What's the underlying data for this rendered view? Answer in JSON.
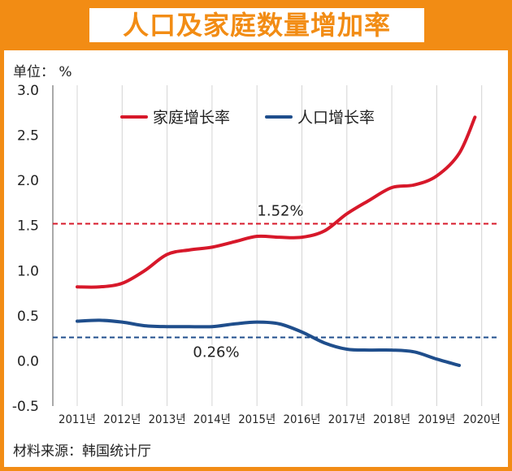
{
  "title": "人口及家庭数量增加率",
  "unit_label": "单位： %",
  "source": "材料来源：韩国统计厅",
  "colors": {
    "frame": "#F28C14",
    "household": "#D7182A",
    "population": "#1F4E8C"
  },
  "chart_data": {
    "type": "line",
    "x": [
      2011,
      2012,
      2013,
      2014,
      2015,
      2016,
      2017,
      2018,
      2019,
      2020
    ],
    "x_tick_labels": [
      "2011년",
      "2012년",
      "2013년",
      "2014년",
      "2015년",
      "2016년",
      "2017년",
      "2018년",
      "2019년",
      "2020년"
    ],
    "ylim": [
      -0.5,
      3.0
    ],
    "y_ticks": [
      3.0,
      2.5,
      2.0,
      1.5,
      1.0,
      0.5,
      0.0,
      -0.5
    ],
    "y_tick_labels": [
      "3.0",
      "2.5",
      "2.0",
      "1.5",
      "1.0",
      "0.5",
      "0.0",
      "-0.5"
    ],
    "grid": "vertical",
    "legend_position": "top-left",
    "series": [
      {
        "name": "家庭增长率",
        "color": "#D7182A",
        "points": [
          [
            2011.0,
            0.82
          ],
          [
            2011.5,
            0.82
          ],
          [
            2012.0,
            0.86
          ],
          [
            2012.5,
            1.0
          ],
          [
            2013.0,
            1.18
          ],
          [
            2013.5,
            1.23
          ],
          [
            2014.0,
            1.26
          ],
          [
            2014.5,
            1.32
          ],
          [
            2015.0,
            1.38
          ],
          [
            2015.5,
            1.37
          ],
          [
            2016.0,
            1.37
          ],
          [
            2016.5,
            1.44
          ],
          [
            2017.0,
            1.63
          ],
          [
            2017.5,
            1.78
          ],
          [
            2018.0,
            1.92
          ],
          [
            2018.5,
            1.95
          ],
          [
            2019.0,
            2.05
          ],
          [
            2019.5,
            2.3
          ],
          [
            2019.85,
            2.7
          ]
        ]
      },
      {
        "name": "人口增长率",
        "color": "#1F4E8C",
        "points": [
          [
            2011.0,
            0.44
          ],
          [
            2011.5,
            0.45
          ],
          [
            2012.0,
            0.43
          ],
          [
            2012.5,
            0.39
          ],
          [
            2013.0,
            0.38
          ],
          [
            2013.5,
            0.38
          ],
          [
            2014.0,
            0.38
          ],
          [
            2014.5,
            0.41
          ],
          [
            2015.0,
            0.43
          ],
          [
            2015.5,
            0.41
          ],
          [
            2016.0,
            0.32
          ],
          [
            2016.5,
            0.2
          ],
          [
            2017.0,
            0.13
          ],
          [
            2017.5,
            0.12
          ],
          [
            2018.0,
            0.12
          ],
          [
            2018.5,
            0.1
          ],
          [
            2019.0,
            0.02
          ],
          [
            2019.5,
            -0.05
          ]
        ]
      }
    ],
    "reference_lines": [
      {
        "value": 1.52,
        "label": "1.52%",
        "color": "#D7182A",
        "style": "dashed"
      },
      {
        "value": 0.26,
        "label": "0.26%",
        "color": "#1F4E8C",
        "style": "dashed"
      }
    ]
  }
}
